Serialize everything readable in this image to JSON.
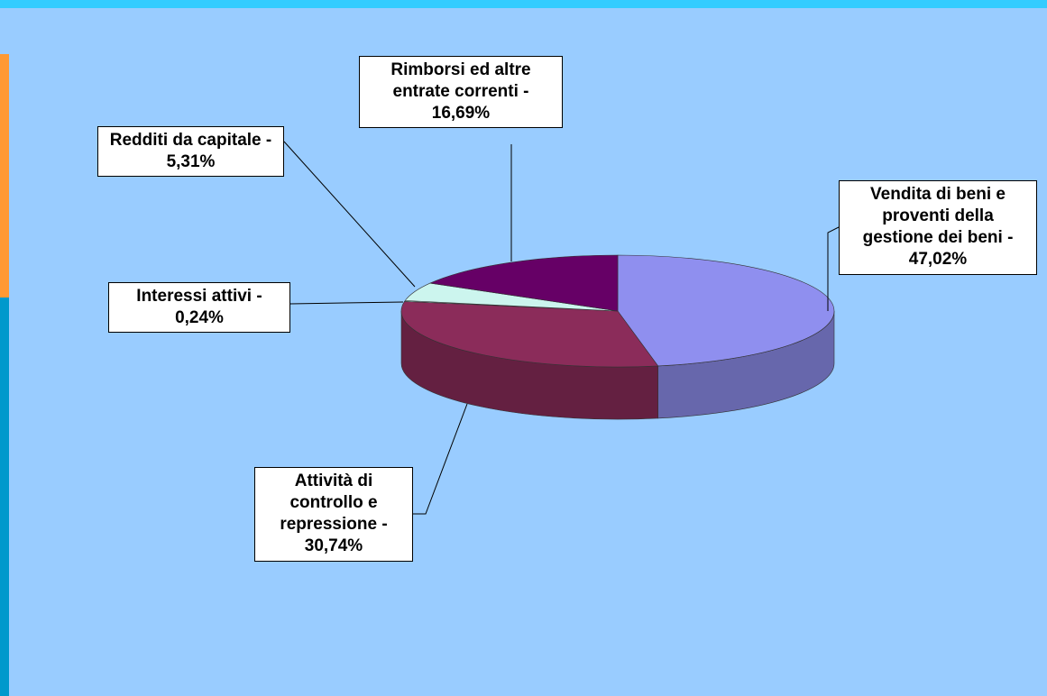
{
  "chart_data": {
    "type": "pie",
    "three_d": true,
    "labels": [
      "Vendita di beni e proventi della gestione dei beni - 47,02%",
      "Attività di controllo e repressione - 30,74%",
      "Interessi attivi - 0,24%",
      "Redditi da capitale - 5,31%",
      "Rimborsi ed altre entrate correnti - 16,69%"
    ],
    "values": [
      47.02,
      30.74,
      0.24,
      5.31,
      16.69
    ],
    "colors": [
      "#8f8fef",
      "#8b2c5a",
      "#ccffff",
      "#ccf5ee",
      "#660066"
    ],
    "start_angle": 0,
    "direction": "clockwise"
  }
}
